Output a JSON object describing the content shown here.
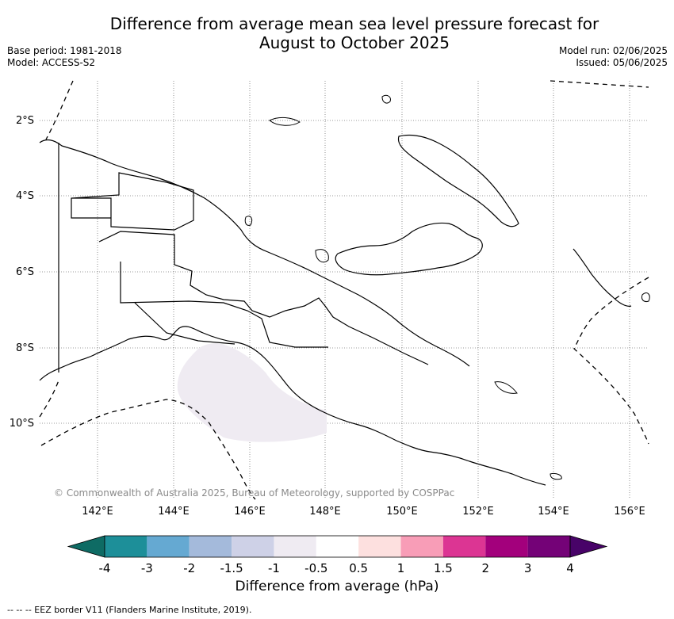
{
  "header": {
    "title_line1": "Difference from average mean sea level pressure forecast for",
    "title_line2": "August to October 2025",
    "base_period": "Base period: 1981-2018",
    "model": "Model: ACCESS-S2",
    "model_run": "Model run: 02/06/2025",
    "issued": "Issued: 05/06/2025"
  },
  "map": {
    "lat_labels": [
      "2°S",
      "4°S",
      "6°S",
      "8°S",
      "10°S"
    ],
    "lon_labels": [
      "142°E",
      "144°E",
      "146°E",
      "148°E",
      "150°E",
      "152°E",
      "154°E",
      "156°E"
    ],
    "copyright": "© Commonwealth of Australia 2025, Bureau of Meteorology, supported by COSPPac",
    "anomaly_region_value_range": "-1 to -0.5",
    "anomaly_fill_color": "#efebf2"
  },
  "colorbar": {
    "label": "Difference from average (hPa)",
    "ticks": [
      "-4",
      "-3",
      "-2",
      "-1.5",
      "-1",
      "-0.5",
      "0.5",
      "1",
      "1.5",
      "2",
      "3",
      "4"
    ],
    "colors": [
      "#0e6b64",
      "#1d8f99",
      "#65a9d2",
      "#a4badb",
      "#ced1e7",
      "#efebf2",
      "#ffffff",
      "#fde0df",
      "#f89db7",
      "#dc3593",
      "#a3007c",
      "#740277",
      "#480368"
    ]
  },
  "footnote": "-- -- -- EEZ border V11 (Flanders Marine Institute, 2019)."
}
